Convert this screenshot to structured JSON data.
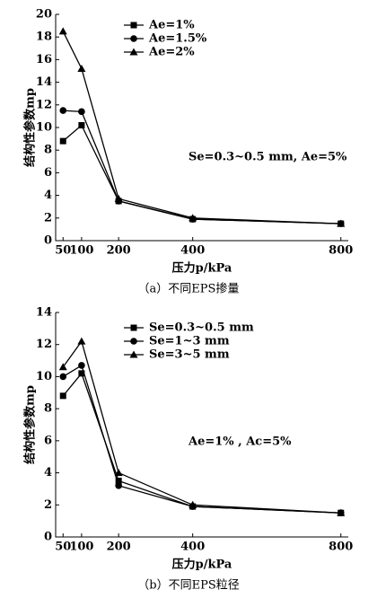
{
  "chart_data": [
    {
      "type": "line",
      "caption": "（a）不同EPS掺量",
      "x_label": "压力p/kPa",
      "y_label": "结构性参数mp",
      "annotation": "Se=0.3~0.5 mm, Ae=5%",
      "x": [
        50,
        100,
        200,
        400,
        800
      ],
      "xlim": [
        30,
        820
      ],
      "xticks": [
        50,
        100,
        200,
        400,
        800
      ],
      "ylim": [
        0,
        20
      ],
      "yticks": [
        0,
        2,
        4,
        6,
        8,
        10,
        12,
        14,
        16,
        18,
        20
      ],
      "series": [
        {
          "name": "Ae=1%",
          "color": "#000000",
          "marker": "square",
          "values": [
            8.8,
            10.2,
            3.5,
            1.9,
            1.5
          ]
        },
        {
          "name": "Ae=1.5%",
          "color": "#000000",
          "marker": "circle",
          "values": [
            11.5,
            11.4,
            3.5,
            1.9,
            1.5
          ]
        },
        {
          "name": "Ae=2%",
          "color": "#000000",
          "marker": "triangle",
          "values": [
            18.5,
            15.2,
            3.7,
            2.0,
            1.5
          ]
        }
      ]
    },
    {
      "type": "line",
      "caption": "（b）不同EPS粒径",
      "x_label": "压力p/kPa",
      "y_label": "结构性参数mp",
      "annotation": "Ae=1% , Ac=5%",
      "x": [
        50,
        100,
        200,
        400,
        800
      ],
      "xlim": [
        30,
        820
      ],
      "xticks": [
        50,
        100,
        200,
        400,
        800
      ],
      "ylim": [
        0,
        14
      ],
      "yticks": [
        0,
        2,
        4,
        6,
        8,
        10,
        12,
        14
      ],
      "series": [
        {
          "name": "Se=0.3~0.5 mm",
          "color": "#000000",
          "marker": "square",
          "values": [
            8.8,
            10.2,
            3.5,
            1.9,
            1.5
          ]
        },
        {
          "name": "Se=1~3 mm",
          "color": "#000000",
          "marker": "circle",
          "values": [
            10.0,
            10.7,
            3.2,
            1.9,
            1.5
          ]
        },
        {
          "name": "Se=3~5 mm",
          "color": "#000000",
          "marker": "triangle",
          "values": [
            10.6,
            12.2,
            4.0,
            2.0,
            1.5
          ]
        }
      ]
    }
  ]
}
